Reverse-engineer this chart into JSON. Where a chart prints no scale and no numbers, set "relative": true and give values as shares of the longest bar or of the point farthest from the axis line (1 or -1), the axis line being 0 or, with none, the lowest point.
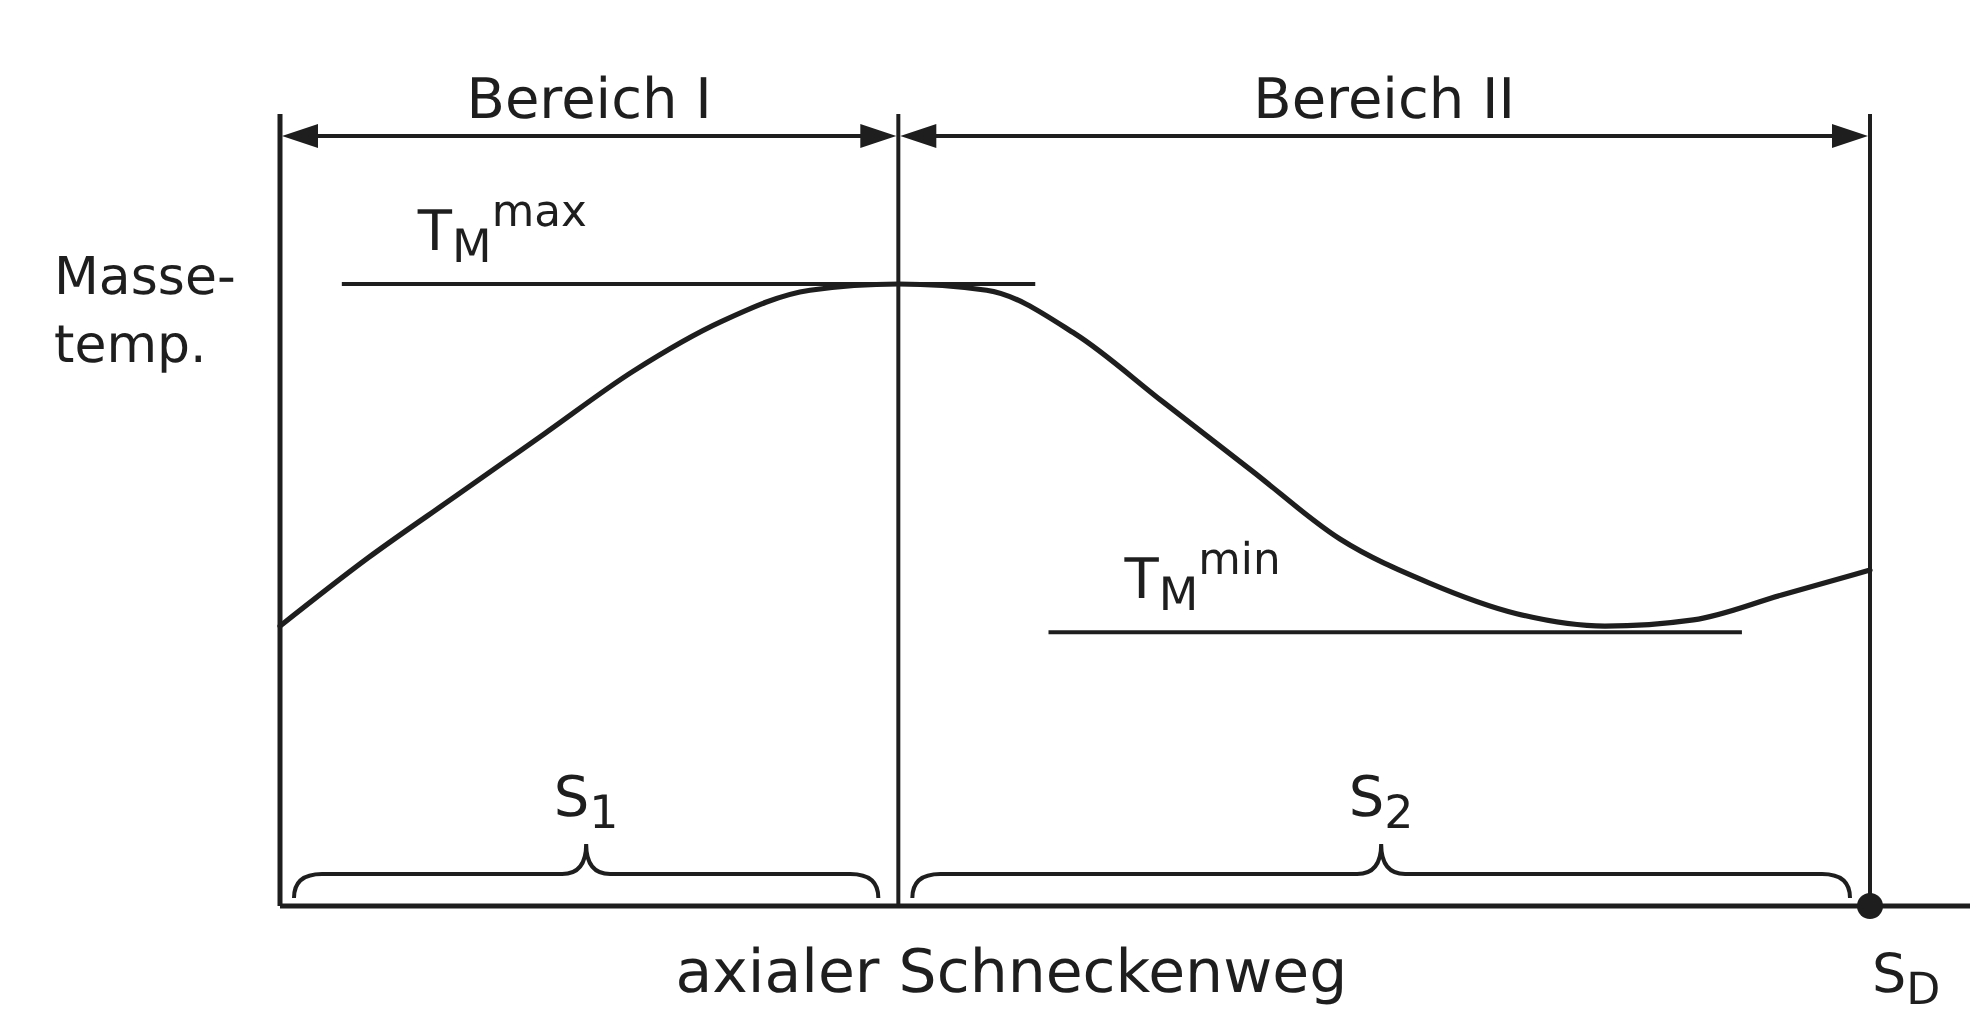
{
  "chart_data": {
    "type": "line",
    "xlabel": "axialer Schneckenweg",
    "ylabel": "Masse-\ntemp.",
    "categories": [
      null,
      null,
      null,
      null,
      null,
      null,
      null,
      null,
      null,
      null,
      null,
      null,
      null,
      null,
      null,
      null,
      null,
      null,
      null
    ],
    "values": [
      0.45,
      0.56,
      0.66,
      0.76,
      0.86,
      0.94,
      0.99,
      1,
      0.99,
      0.92,
      0.81,
      0.7,
      0.59,
      0.52,
      0.47,
      0.45,
      0.46,
      0.5,
      0.54
    ],
    "color": "#1e1e1e",
    "relative": true,
    "line_style": "solid",
    "ref_lines": [
      {
        "axis": "y",
        "value": 1,
        "label": "T$_{M}$$^{max}$"
      },
      {
        "axis": "y",
        "value": 0.44,
        "label": "T$_{M}$$^{min}$"
      }
    ],
    "annotations": [
      "Bereich I",
      "Bereich II",
      "S$_{1}$",
      "S$_{2}$",
      "S$_{D}$"
    ]
  }
}
